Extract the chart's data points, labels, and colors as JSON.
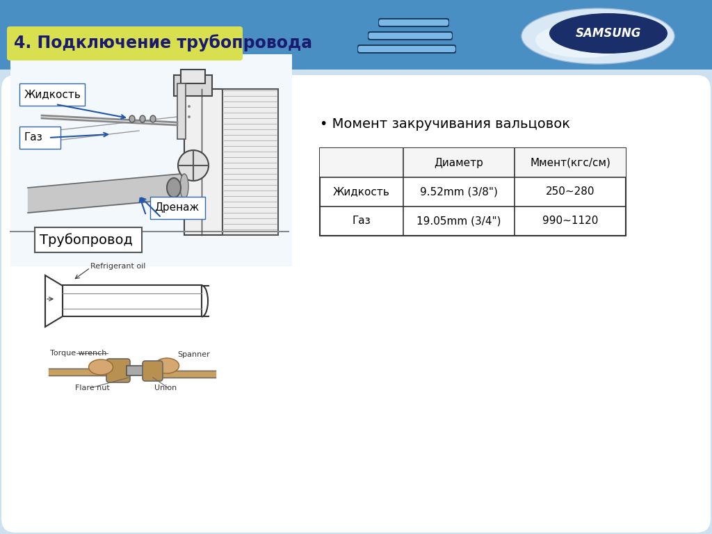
{
  "title": "4. Подключение трубопровода",
  "header_bg": "#4a8fc4",
  "header_bg2": "#5ba5d5",
  "title_bg": "#d8e050",
  "title_color": "#1a1a6e",
  "page_bg": "#cce0f0",
  "content_bg": "#ffffff",
  "samsung_text": "SAMSUNG",
  "label_liquid": "Жидкость",
  "label_gas": "Газ",
  "label_drain": "Дренаж",
  "label_pipe": "Трубопровод",
  "section_title": "• Момент закручивания вальцовок",
  "table_headers": [
    "",
    "Диаметр",
    "Ммент(кгс/см)"
  ],
  "table_row1": [
    "Жидкость",
    "9.52mm (3/8\")",
    "250~280"
  ],
  "table_row2": [
    "Газ",
    "19.05mm (3/4\")",
    "990~1120"
  ],
  "refrigerant_oil_label": "Refrigerant oil",
  "torque_wrench_label": "Torque wrench",
  "spanner_label": "Spanner",
  "flare_nut_label": "Flare nut",
  "union_label": "Union"
}
